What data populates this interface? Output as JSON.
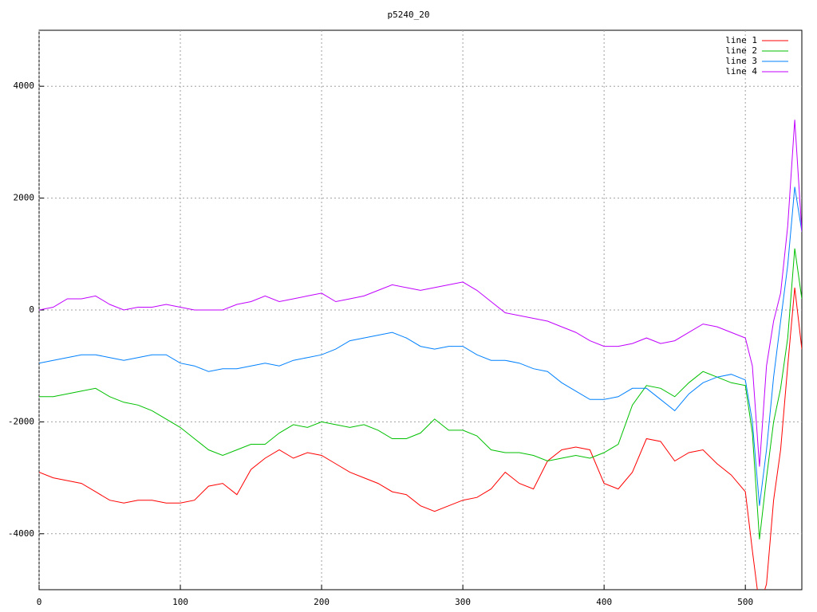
{
  "chart_data": {
    "type": "line",
    "title": "p5240_20",
    "x": [
      0,
      10,
      20,
      30,
      40,
      50,
      60,
      70,
      80,
      90,
      100,
      110,
      120,
      130,
      140,
      150,
      160,
      170,
      180,
      190,
      200,
      210,
      220,
      230,
      240,
      250,
      260,
      270,
      280,
      290,
      300,
      310,
      320,
      330,
      340,
      350,
      360,
      370,
      380,
      390,
      400,
      410,
      420,
      430,
      440,
      450,
      460,
      470,
      480,
      490,
      500,
      505,
      510,
      515,
      520,
      525,
      530,
      535,
      540
    ],
    "series": [
      {
        "name": "line 1",
        "color": "#ff0000",
        "values": [
          -2900,
          -3000,
          -3050,
          -3100,
          -3250,
          -3400,
          -3450,
          -3400,
          -3400,
          -3450,
          -3450,
          -3400,
          -3150,
          -3100,
          -3300,
          -2850,
          -2650,
          -2500,
          -2650,
          -2550,
          -2600,
          -2750,
          -2900,
          -3000,
          -3100,
          -3250,
          -3300,
          -3500,
          -3600,
          -3500,
          -3400,
          -3350,
          -3200,
          -2900,
          -3100,
          -3200,
          -2700,
          -2500,
          -2450,
          -2500,
          -3100,
          -3200,
          -2900,
          -2300,
          -2350,
          -2700,
          -2550,
          -2500,
          -2750,
          -2950,
          -3250,
          -4300,
          -5300,
          -4900,
          -3400,
          -2500,
          -1000,
          400,
          -700
        ]
      },
      {
        "name": "line 2",
        "color": "#00c000",
        "values": [
          -1550,
          -1550,
          -1500,
          -1450,
          -1400,
          -1550,
          -1650,
          -1700,
          -1800,
          -1950,
          -2100,
          -2300,
          -2500,
          -2600,
          -2500,
          -2400,
          -2400,
          -2200,
          -2050,
          -2100,
          -2000,
          -2050,
          -2100,
          -2050,
          -2150,
          -2300,
          -2300,
          -2200,
          -1950,
          -2150,
          -2150,
          -2250,
          -2500,
          -2550,
          -2550,
          -2600,
          -2700,
          -2650,
          -2600,
          -2650,
          -2550,
          -2400,
          -1700,
          -1350,
          -1400,
          -1550,
          -1300,
          -1100,
          -1200,
          -1300,
          -1350,
          -2200,
          -4100,
          -3000,
          -2000,
          -1400,
          -500,
          1100,
          200
        ]
      },
      {
        "name": "line 3",
        "color": "#0080ff",
        "values": [
          -950,
          -900,
          -850,
          -800,
          -800,
          -850,
          -900,
          -850,
          -800,
          -800,
          -950,
          -1000,
          -1100,
          -1050,
          -1050,
          -1000,
          -950,
          -1000,
          -900,
          -850,
          -800,
          -700,
          -550,
          -500,
          -450,
          -400,
          -500,
          -650,
          -700,
          -650,
          -650,
          -800,
          -900,
          -900,
          -950,
          -1050,
          -1100,
          -1300,
          -1450,
          -1600,
          -1600,
          -1550,
          -1400,
          -1400,
          -1600,
          -1800,
          -1500,
          -1300,
          -1200,
          -1150,
          -1250,
          -2000,
          -3500,
          -2500,
          -1200,
          -200,
          800,
          2200,
          1400
        ]
      },
      {
        "name": "line 4",
        "color": "#c000ff",
        "values": [
          0,
          50,
          200,
          200,
          250,
          100,
          0,
          50,
          50,
          100,
          50,
          0,
          0,
          0,
          100,
          150,
          250,
          150,
          200,
          250,
          300,
          150,
          200,
          250,
          350,
          450,
          400,
          350,
          400,
          450,
          500,
          350,
          150,
          -50,
          -100,
          -150,
          -200,
          -300,
          -400,
          -550,
          -650,
          -650,
          -600,
          -500,
          -600,
          -550,
          -400,
          -250,
          -300,
          -400,
          -500,
          -1000,
          -2800,
          -1000,
          -200,
          300,
          1500,
          3400,
          1400
        ]
      }
    ],
    "xlim": [
      0,
      540
    ],
    "ylim": [
      -5000,
      5000
    ],
    "xticks": [
      0,
      100,
      200,
      300,
      400,
      500
    ],
    "yticks": [
      -4000,
      -2000,
      0,
      2000,
      4000
    ],
    "grid": true,
    "legend": "top-right"
  }
}
